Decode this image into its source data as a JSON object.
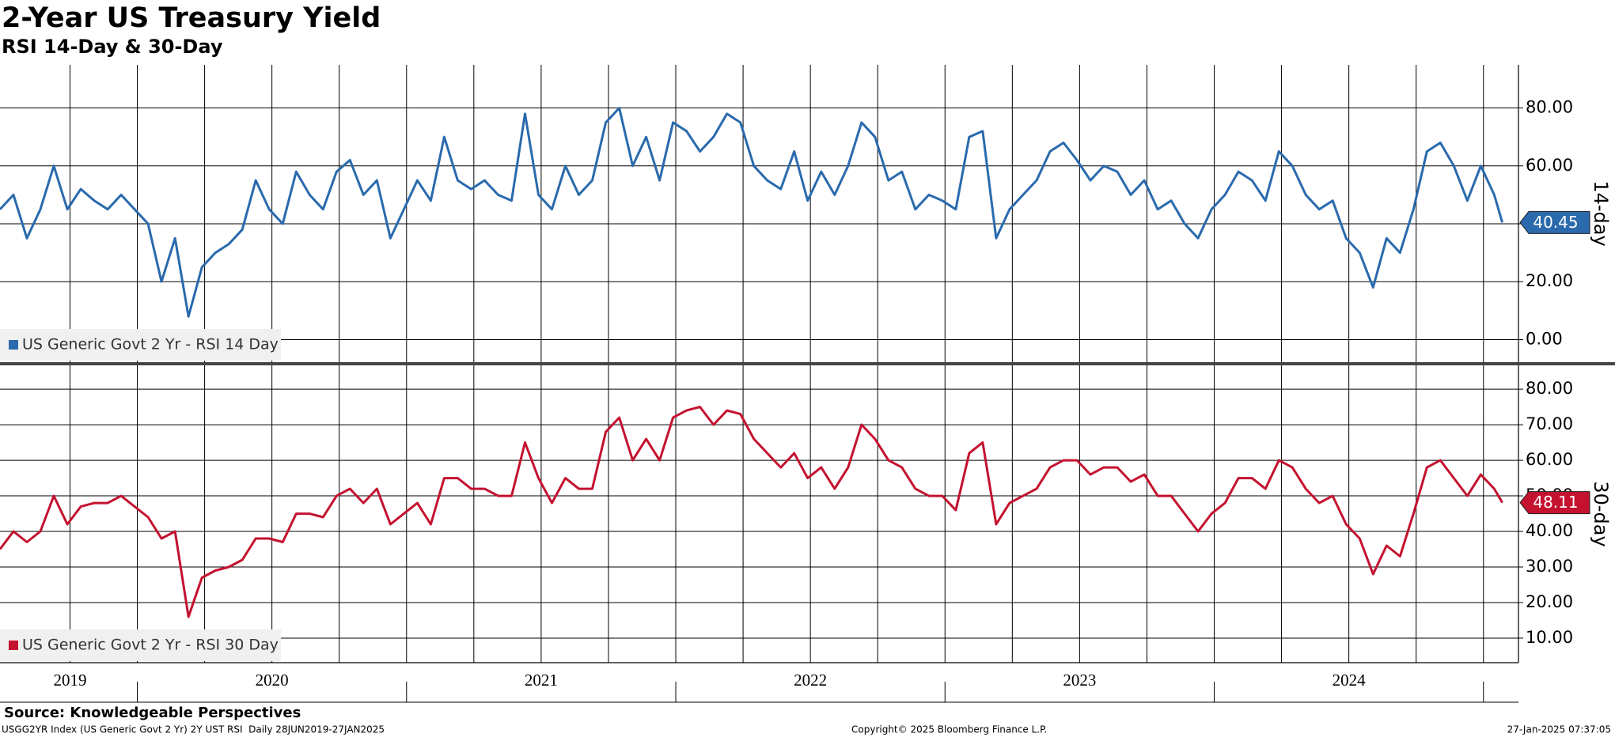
{
  "title": "2-Year US Treasury Yield",
  "subtitle": "RSI 14-Day & 30-Day",
  "source": "Source: Knowledgeable Perspectives",
  "footer_left": "USGG2YR Index (US Generic Govt 2 Yr) 2Y UST RSI  Daily 28JUN2019-27JAN2025",
  "footer_center": "Copyright© 2025 Bloomberg Finance L.P.",
  "footer_right": "27-Jan-2025 07:37:05",
  "chart_data": [
    {
      "type": "line",
      "ylabel": "14-day",
      "grid": true,
      "xlim": [
        2019.49,
        2025.13
      ],
      "xgrid": [
        2019.75,
        2020,
        2020.25,
        2020.5,
        2020.75,
        2021,
        2021.25,
        2021.5,
        2021.75,
        2022,
        2022.25,
        2022.5,
        2022.75,
        2023,
        2023.25,
        2023.5,
        2023.75,
        2024,
        2024.25,
        2024.5,
        2024.75,
        2025
      ],
      "ylim": [
        -7.8,
        94.9
      ],
      "yticks": [
        {
          "value": 0,
          "label": "0.00"
        },
        {
          "value": 20,
          "label": "20.00"
        },
        {
          "value": 40,
          "label": "40.00"
        },
        {
          "value": 60,
          "label": "60.00"
        },
        {
          "value": 80,
          "label": "80.00"
        }
      ],
      "x": [
        2019.49,
        2019.54,
        2019.59,
        2019.64,
        2019.69,
        2019.74,
        2019.79,
        2019.84,
        2019.89,
        2019.94,
        2019.99,
        2020.04,
        2020.09,
        2020.14,
        2020.19,
        2020.24,
        2020.29,
        2020.34,
        2020.39,
        2020.44,
        2020.49,
        2020.54,
        2020.59,
        2020.64,
        2020.69,
        2020.74,
        2020.79,
        2020.84,
        2020.89,
        2020.94,
        2020.99,
        2021.04,
        2021.09,
        2021.14,
        2021.19,
        2021.24,
        2021.29,
        2021.34,
        2021.39,
        2021.44,
        2021.49,
        2021.54,
        2021.59,
        2021.64,
        2021.69,
        2021.74,
        2021.79,
        2021.84,
        2021.89,
        2021.94,
        2021.99,
        2022.04,
        2022.09,
        2022.14,
        2022.19,
        2022.24,
        2022.29,
        2022.34,
        2022.39,
        2022.44,
        2022.49,
        2022.54,
        2022.59,
        2022.64,
        2022.69,
        2022.74,
        2022.79,
        2022.84,
        2022.89,
        2022.94,
        2022.99,
        2023.04,
        2023.09,
        2023.14,
        2023.19,
        2023.24,
        2023.29,
        2023.34,
        2023.39,
        2023.44,
        2023.49,
        2023.54,
        2023.59,
        2023.64,
        2023.69,
        2023.74,
        2023.79,
        2023.84,
        2023.89,
        2023.94,
        2023.99,
        2024.04,
        2024.09,
        2024.14,
        2024.19,
        2024.24,
        2024.29,
        2024.34,
        2024.39,
        2024.44,
        2024.49,
        2024.54,
        2024.59,
        2024.64,
        2024.69,
        2024.74,
        2024.79,
        2024.84,
        2024.89,
        2024.94,
        2024.99,
        2025.04,
        2025.07
      ],
      "series": [
        {
          "name": "US Generic Govt 2 Yr - RSI 14 Day",
          "color": "#2a6aad",
          "values": [
            45,
            50,
            35,
            45,
            60,
            45,
            52,
            48,
            45,
            50,
            45,
            40,
            20,
            35,
            8,
            25,
            30,
            33,
            38,
            55,
            45,
            40,
            58,
            50,
            45,
            58,
            62,
            50,
            55,
            35,
            45,
            55,
            48,
            70,
            55,
            52,
            55,
            50,
            48,
            78,
            50,
            45,
            60,
            50,
            55,
            75,
            80,
            60,
            70,
            55,
            75,
            72,
            65,
            70,
            78,
            75,
            60,
            55,
            52,
            65,
            48,
            58,
            50,
            60,
            75,
            70,
            55,
            58,
            45,
            50,
            48,
            45,
            70,
            72,
            35,
            45,
            50,
            55,
            65,
            68,
            62,
            55,
            60,
            58,
            50,
            55,
            45,
            48,
            40,
            35,
            45,
            50,
            58,
            55,
            48,
            65,
            60,
            50,
            45,
            48,
            35,
            30,
            18,
            35,
            30,
            45,
            65,
            68,
            60,
            48,
            60,
            50,
            40.45
          ]
        }
      ]
    },
    {
      "type": "line",
      "ylabel": "30-day",
      "grid": true,
      "xlim": [
        2019.49,
        2025.13
      ],
      "xgrid": [
        2019.75,
        2020,
        2020.25,
        2020.5,
        2020.75,
        2021,
        2021.25,
        2021.5,
        2021.75,
        2022,
        2022.25,
        2022.5,
        2022.75,
        2023,
        2023.25,
        2023.5,
        2023.75,
        2024,
        2024.25,
        2024.5,
        2024.75,
        2025
      ],
      "xticks": [
        {
          "value": 2019.75,
          "label": "2019"
        },
        {
          "value": 2020.5,
          "label": "2020"
        },
        {
          "value": 2021.5,
          "label": "2021"
        },
        {
          "value": 2022.5,
          "label": "2022"
        },
        {
          "value": 2023.5,
          "label": "2023"
        },
        {
          "value": 2024.5,
          "label": "2024"
        }
      ],
      "ylim": [
        3.1,
        86.7
      ],
      "yticks": [
        {
          "value": 10,
          "label": "10.00"
        },
        {
          "value": 20,
          "label": "20.00"
        },
        {
          "value": 30,
          "label": "30.00"
        },
        {
          "value": 40,
          "label": "40.00"
        },
        {
          "value": 50,
          "label": "50.00"
        },
        {
          "value": 60,
          "label": "60.00"
        },
        {
          "value": 70,
          "label": "70.00"
        },
        {
          "value": 80,
          "label": "80.00"
        }
      ],
      "x": [
        2019.49,
        2019.54,
        2019.59,
        2019.64,
        2019.69,
        2019.74,
        2019.79,
        2019.84,
        2019.89,
        2019.94,
        2019.99,
        2020.04,
        2020.09,
        2020.14,
        2020.19,
        2020.24,
        2020.29,
        2020.34,
        2020.39,
        2020.44,
        2020.49,
        2020.54,
        2020.59,
        2020.64,
        2020.69,
        2020.74,
        2020.79,
        2020.84,
        2020.89,
        2020.94,
        2020.99,
        2021.04,
        2021.09,
        2021.14,
        2021.19,
        2021.24,
        2021.29,
        2021.34,
        2021.39,
        2021.44,
        2021.49,
        2021.54,
        2021.59,
        2021.64,
        2021.69,
        2021.74,
        2021.79,
        2021.84,
        2021.89,
        2021.94,
        2021.99,
        2022.04,
        2022.09,
        2022.14,
        2022.19,
        2022.24,
        2022.29,
        2022.34,
        2022.39,
        2022.44,
        2022.49,
        2022.54,
        2022.59,
        2022.64,
        2022.69,
        2022.74,
        2022.79,
        2022.84,
        2022.89,
        2022.94,
        2022.99,
        2023.04,
        2023.09,
        2023.14,
        2023.19,
        2023.24,
        2023.29,
        2023.34,
        2023.39,
        2023.44,
        2023.49,
        2023.54,
        2023.59,
        2023.64,
        2023.69,
        2023.74,
        2023.79,
        2023.84,
        2023.89,
        2023.94,
        2023.99,
        2024.04,
        2024.09,
        2024.14,
        2024.19,
        2024.24,
        2024.29,
        2024.34,
        2024.39,
        2024.44,
        2024.49,
        2024.54,
        2024.59,
        2024.64,
        2024.69,
        2024.74,
        2024.79,
        2024.84,
        2024.89,
        2024.94,
        2024.99,
        2025.04,
        2025.07
      ],
      "series": [
        {
          "name": "US Generic Govt 2 Yr - RSI 30 Day",
          "color": "#c4122f",
          "values": [
            35,
            40,
            37,
            40,
            50,
            42,
            47,
            48,
            48,
            50,
            47,
            44,
            38,
            40,
            16,
            27,
            29,
            30,
            32,
            38,
            38,
            37,
            45,
            45,
            44,
            50,
            52,
            48,
            52,
            42,
            45,
            48,
            42,
            55,
            55,
            52,
            52,
            50,
            50,
            65,
            55,
            48,
            55,
            52,
            52,
            68,
            72,
            60,
            66,
            60,
            72,
            74,
            75,
            70,
            74,
            73,
            66,
            62,
            58,
            62,
            55,
            58,
            52,
            58,
            70,
            66,
            60,
            58,
            52,
            50,
            50,
            46,
            62,
            65,
            42,
            48,
            50,
            52,
            58,
            60,
            60,
            56,
            58,
            58,
            54,
            56,
            50,
            50,
            45,
            40,
            45,
            48,
            55,
            55,
            52,
            60,
            58,
            52,
            48,
            50,
            42,
            38,
            28,
            36,
            33,
            45,
            58,
            60,
            55,
            50,
            56,
            52,
            48.11
          ]
        }
      ]
    }
  ]
}
